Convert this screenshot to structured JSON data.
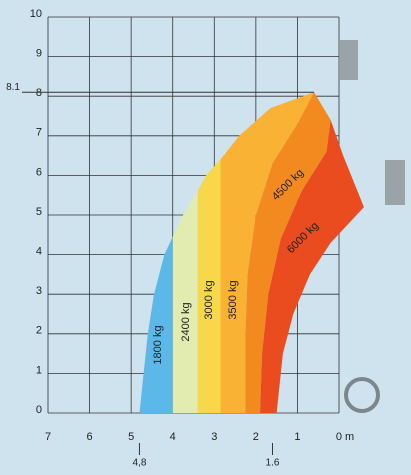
{
  "chart_data": {
    "type": "load-zones",
    "xlim": [
      7,
      0
    ],
    "ylim": [
      0,
      10
    ],
    "xticks": [
      7,
      6,
      5,
      4,
      3,
      2,
      1,
      {
        "value": 0,
        "label": "0 m"
      }
    ],
    "yticks": [
      0,
      1,
      2,
      3,
      4,
      5,
      6,
      7,
      8,
      9,
      10
    ],
    "extra_xticks": [
      {
        "value": 4.8,
        "label": "4,8"
      },
      1.6
    ],
    "extra_yticks": [
      8.1
    ],
    "grid": true,
    "series": [
      {
        "name": "1800 kg",
        "color": "#5bb8e8",
        "x": [
          4.8,
          4.7,
          4.6,
          4.45,
          4.2,
          4.0,
          4.0
        ],
        "y": [
          0,
          1,
          2,
          3,
          4,
          4.45,
          0
        ]
      },
      {
        "name": "2400 kg",
        "color": "#e2ecb0",
        "x": [
          4.0,
          4.0,
          3.75,
          3.4,
          3.4
        ],
        "y": [
          0,
          4.45,
          5,
          5.6,
          0
        ]
      },
      {
        "name": "3000 kg",
        "color": "#f7d84a",
        "x": [
          3.4,
          3.4,
          3.2,
          2.85,
          2.85
        ],
        "y": [
          0,
          5.6,
          6,
          6.4,
          0
        ]
      },
      {
        "name": "3500 kg",
        "color": "#f9b233",
        "x": [
          2.85,
          2.85,
          2.4,
          1.65,
          0.6,
          1.0,
          1.6,
          2.0,
          2.2,
          2.25,
          2.25
        ],
        "y": [
          0,
          6.4,
          7,
          7.7,
          8.1,
          7.3,
          6.3,
          5.0,
          3.5,
          2,
          0
        ]
      },
      {
        "name": "4500 kg",
        "color": "#f38a1f",
        "x": [
          2.25,
          2.25,
          2.2,
          2.0,
          1.6,
          1.0,
          0.6,
          0.2,
          0.3,
          0.9,
          1.4,
          1.7,
          1.85,
          1.9
        ],
        "y": [
          0,
          2,
          3.5,
          5.0,
          6.3,
          7.3,
          8.1,
          7.4,
          6.6,
          5.6,
          4.4,
          3,
          1.5,
          0
        ]
      },
      {
        "name": "6000 kg",
        "color": "#ea4b1f",
        "x": [
          1.9,
          1.85,
          1.7,
          1.4,
          0.9,
          0.3,
          0.2,
          -0.1,
          -0.6,
          0.2,
          0.7,
          1.1,
          1.35,
          1.5
        ],
        "y": [
          0,
          1.5,
          3,
          4.4,
          5.6,
          6.6,
          7.4,
          6.5,
          5.2,
          4.3,
          3.5,
          2.5,
          1.5,
          0
        ]
      }
    ]
  }
}
